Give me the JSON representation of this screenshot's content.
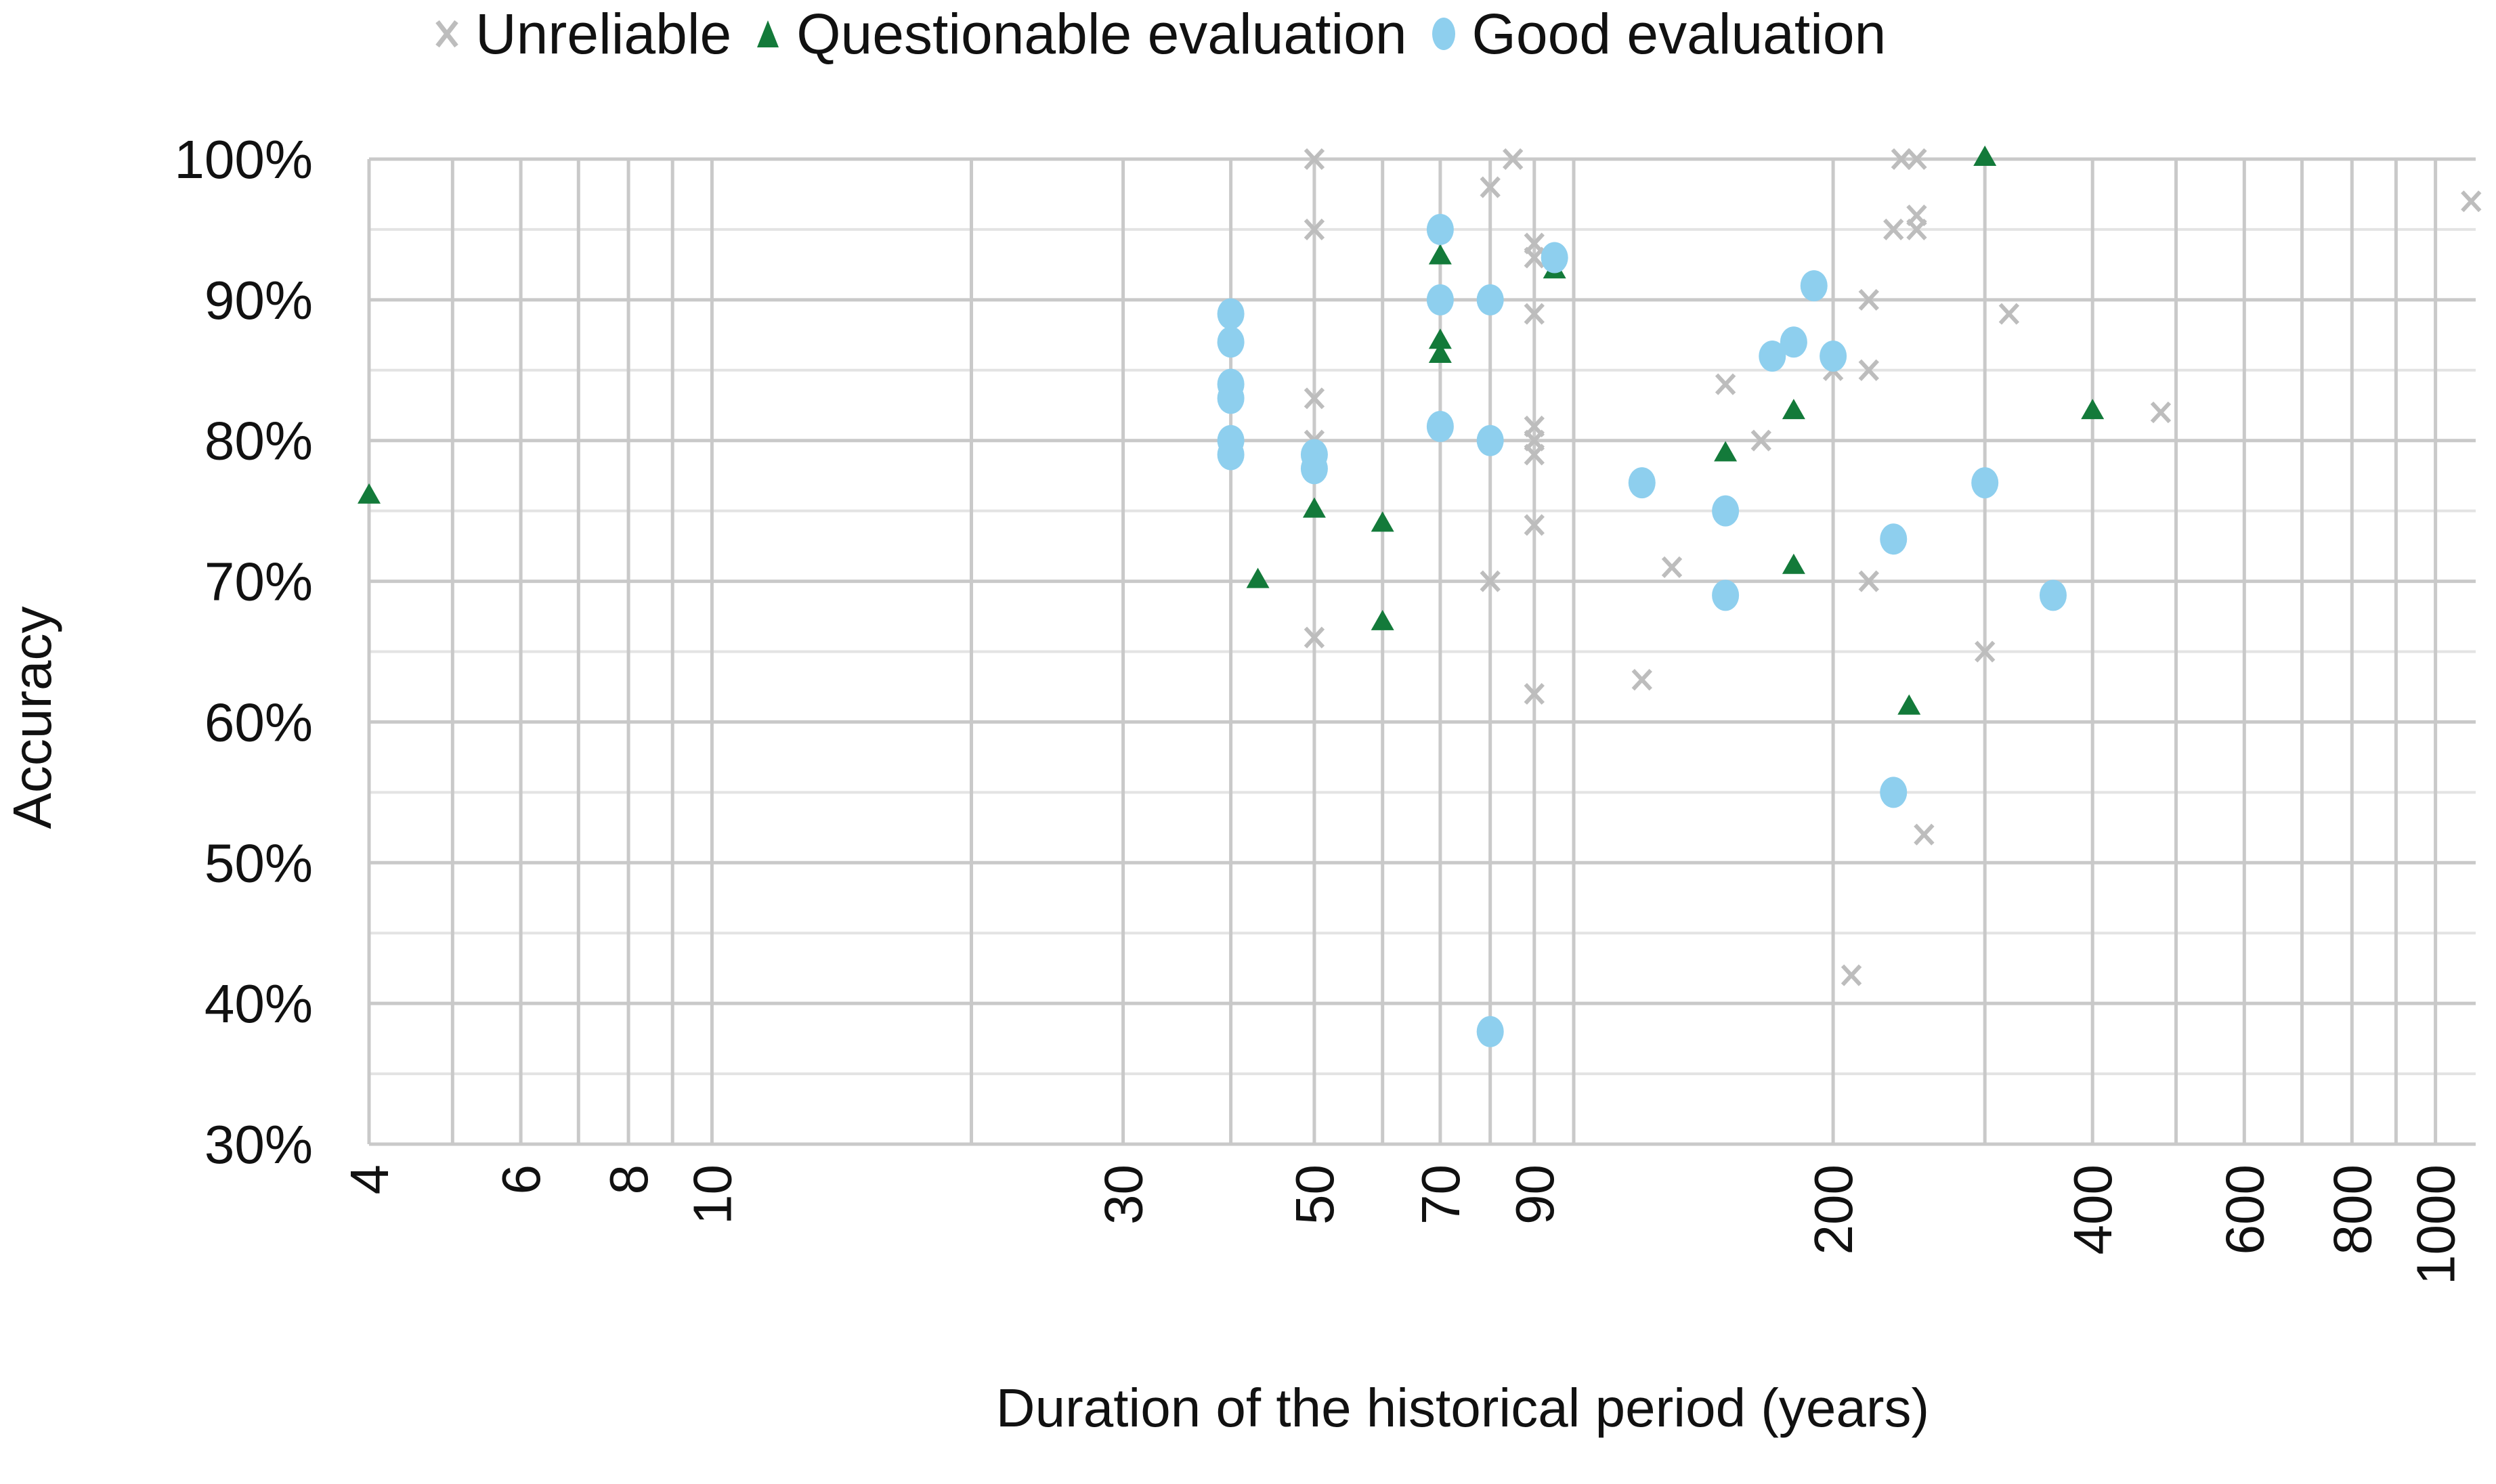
{
  "legend": {
    "items": [
      {
        "label": "Unreliable",
        "marker": "x-cross",
        "color": "#bdbdbd"
      },
      {
        "label": "Questionable evaluation",
        "marker": "triangle",
        "color": "#137a3a"
      },
      {
        "label": "Good evaluation",
        "marker": "circle",
        "color": "#8ecfee"
      }
    ]
  },
  "axes": {
    "ylabel": "Accuracy",
    "xlabel": "Duration of the historical period (years)"
  },
  "chart_data": {
    "type": "scatter",
    "title": "",
    "xlabel": "Duration of the historical period (years)",
    "ylabel": "Accuracy",
    "xscale": "log",
    "xlim": [
      4,
      1110
    ],
    "ylim": [
      30,
      100
    ],
    "x_ticks": [
      4,
      6,
      8,
      10,
      30,
      50,
      70,
      90,
      200,
      400,
      600,
      800,
      1000
    ],
    "y_ticks": [
      "30%",
      "40%",
      "50%",
      "60%",
      "70%",
      "80%",
      "90%",
      "100%"
    ],
    "y_tick_values": [
      30,
      40,
      50,
      60,
      70,
      80,
      90,
      100
    ],
    "grid": true,
    "legend_position": "top",
    "series": [
      {
        "name": "Unreliable",
        "marker": "x",
        "color": "#bdbdbd",
        "points": [
          [
            50,
            100
          ],
          [
            50,
            95
          ],
          [
            50,
            83
          ],
          [
            50,
            80
          ],
          [
            50,
            66
          ],
          [
            80,
            98
          ],
          [
            85,
            100
          ],
          [
            80,
            70
          ],
          [
            90,
            94
          ],
          [
            90,
            93
          ],
          [
            90,
            89
          ],
          [
            90,
            81
          ],
          [
            90,
            80
          ],
          [
            90,
            79
          ],
          [
            90,
            74
          ],
          [
            90,
            62
          ],
          [
            120,
            63
          ],
          [
            130,
            71
          ],
          [
            150,
            84
          ],
          [
            165,
            80
          ],
          [
            200,
            85
          ],
          [
            220,
            90
          ],
          [
            220,
            85
          ],
          [
            220,
            70
          ],
          [
            210,
            42
          ],
          [
            240,
            100
          ],
          [
            235,
            95
          ],
          [
            250,
            100
          ],
          [
            250,
            96
          ],
          [
            250,
            95
          ],
          [
            255,
            52
          ],
          [
            300,
            65
          ],
          [
            320,
            89
          ],
          [
            480,
            82
          ],
          [
            1100,
            97
          ]
        ]
      },
      {
        "name": "Questionable evaluation",
        "marker": "triangle",
        "color": "#137a3a",
        "points": [
          [
            4,
            76
          ],
          [
            43,
            70
          ],
          [
            50,
            75
          ],
          [
            60,
            74
          ],
          [
            60,
            67
          ],
          [
            70,
            93
          ],
          [
            70,
            87
          ],
          [
            70,
            86
          ],
          [
            95,
            92
          ],
          [
            150,
            79
          ],
          [
            180,
            82
          ],
          [
            180,
            71
          ],
          [
            245,
            61
          ],
          [
            300,
            100
          ],
          [
            400,
            82
          ]
        ]
      },
      {
        "name": "Good evaluation",
        "marker": "circle",
        "color": "#8ecfee",
        "points": [
          [
            40,
            89
          ],
          [
            40,
            87
          ],
          [
            40,
            84
          ],
          [
            40,
            83
          ],
          [
            40,
            80
          ],
          [
            40,
            79
          ],
          [
            50,
            79
          ],
          [
            50,
            78
          ],
          [
            70,
            95
          ],
          [
            70,
            90
          ],
          [
            70,
            81
          ],
          [
            80,
            90
          ],
          [
            80,
            80
          ],
          [
            80,
            38
          ],
          [
            95,
            93
          ],
          [
            120,
            77
          ],
          [
            150,
            75
          ],
          [
            150,
            69
          ],
          [
            170,
            86
          ],
          [
            180,
            87
          ],
          [
            190,
            91
          ],
          [
            200,
            86
          ],
          [
            235,
            73
          ],
          [
            235,
            55
          ],
          [
            300,
            77
          ],
          [
            360,
            69
          ]
        ]
      }
    ]
  }
}
